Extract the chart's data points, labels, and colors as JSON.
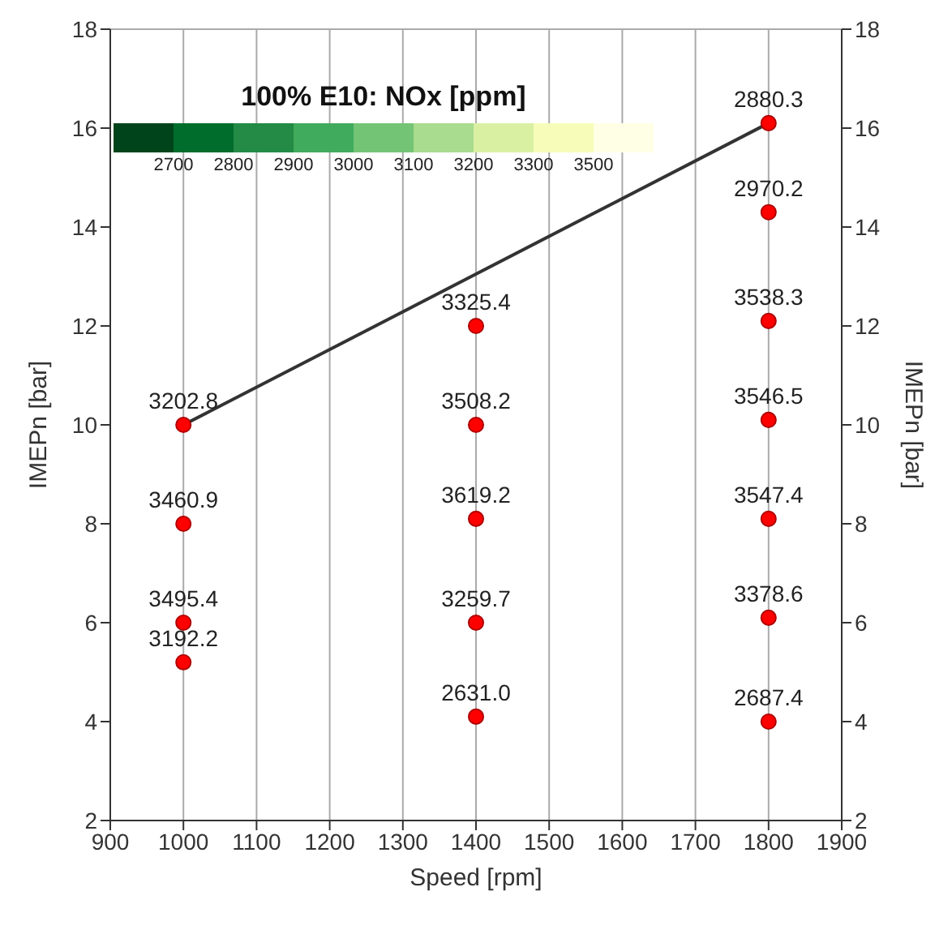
{
  "chart_data": {
    "type": "scatter",
    "title": "100% E10: NOx [ppm]",
    "xlabel": "Speed [rpm]",
    "ylabel": "IMEPn [bar]",
    "y2label": "IMEPn [bar]",
    "xlim": [
      900,
      1900
    ],
    "xticks": [
      900,
      1000,
      1100,
      1200,
      1300,
      1400,
      1500,
      1600,
      1700,
      1800,
      1900
    ],
    "ylim": [
      2,
      18
    ],
    "yticks": [
      2,
      4,
      6,
      8,
      10,
      12,
      14,
      16,
      18
    ],
    "y2lim": [
      2,
      18
    ],
    "y2ticks": [
      2,
      4,
      6,
      8,
      10,
      12,
      14,
      16,
      18
    ],
    "grid": true,
    "marker": "circle",
    "series": [
      {
        "type": "line",
        "color": "#333333",
        "x": [
          1000,
          1800
        ],
        "values": [
          10,
          16.1
        ],
        "marker": "none"
      },
      {
        "color": "#ff0000",
        "x": [
          1000,
          1000,
          1000,
          1000,
          1400,
          1400,
          1400,
          1400,
          1400,
          1800,
          1800,
          1800,
          1800,
          1800,
          1800,
          1800
        ],
        "values": [
          10,
          8,
          6,
          5.2,
          12,
          10,
          8.1,
          6,
          4.1,
          16.1,
          14.3,
          12.1,
          10.1,
          8.1,
          6.1,
          4
        ]
      }
    ],
    "annotations": [
      "2700",
      "2800",
      "2900",
      "3000",
      "3100",
      "3200",
      "3300",
      "3500",
      {
        "text": "3202.8",
        "x": 1000,
        "y": 10
      },
      {
        "text": "3460.9",
        "x": 1000,
        "y": 8
      },
      {
        "text": "3495.4",
        "x": 1000,
        "y": 6
      },
      {
        "text": "3192.2",
        "x": 1000,
        "y": 5.2
      },
      {
        "text": "3325.4",
        "x": 1400,
        "y": 12
      },
      {
        "text": "3508.2",
        "x": 1400,
        "y": 10
      },
      {
        "text": "3619.2",
        "x": 1400,
        "y": 8.1
      },
      {
        "text": "3259.7",
        "x": 1400,
        "y": 6
      },
      {
        "text": "2631.0",
        "x": 1400,
        "y": 4.1
      },
      {
        "text": "2880.3",
        "x": 1800,
        "y": 16.1
      },
      {
        "text": "2970.2",
        "x": 1800,
        "y": 14.3
      },
      {
        "text": "3538.3",
        "x": 1800,
        "y": 12.1
      },
      {
        "text": "3546.5",
        "x": 1800,
        "y": 10.1
      },
      {
        "text": "3547.4",
        "x": 1800,
        "y": 8.1
      },
      {
        "text": "3378.6",
        "x": 1800,
        "y": 6.1
      },
      {
        "text": "2687.4",
        "x": 1800,
        "y": 4
      }
    ]
  }
}
